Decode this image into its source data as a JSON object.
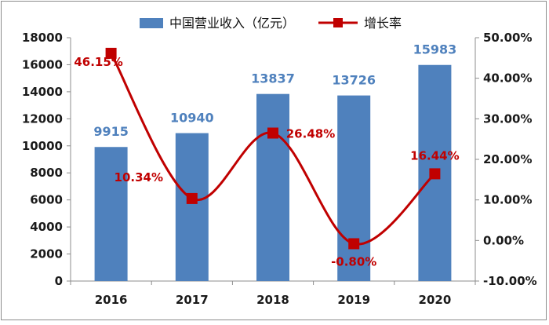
{
  "chart_data": {
    "type": "bar",
    "categories": [
      "2016",
      "2017",
      "2018",
      "2019",
      "2020"
    ],
    "series": [
      {
        "name": "中国营业收入（亿元）",
        "kind": "bar",
        "axis": "left",
        "color": "#4f81bd",
        "values": [
          9915,
          10940,
          13837,
          13726,
          15983
        ],
        "labels": [
          "9915",
          "10940",
          "13837",
          "13726",
          "15983"
        ]
      },
      {
        "name": "增长率",
        "kind": "line",
        "axis": "right",
        "color": "#c00000",
        "values": [
          46.15,
          10.34,
          26.48,
          -0.8,
          16.44
        ],
        "labels": [
          "46.15%",
          "10.34%",
          "26.48%",
          "-0.80%",
          "16.44%"
        ]
      }
    ],
    "y_left": {
      "range": [
        0,
        18000
      ],
      "ticks": [
        "0",
        "2000",
        "4000",
        "6000",
        "8000",
        "10000",
        "12000",
        "14000",
        "16000",
        "18000"
      ]
    },
    "y_right": {
      "range": [
        -10,
        50
      ],
      "ticks": [
        "-10.00%",
        "0.00%",
        "10.00%",
        "20.00%",
        "30.00%",
        "40.00%",
        "50.00%"
      ]
    },
    "grid": false,
    "legend": "top-center",
    "line_style": "smooth"
  }
}
